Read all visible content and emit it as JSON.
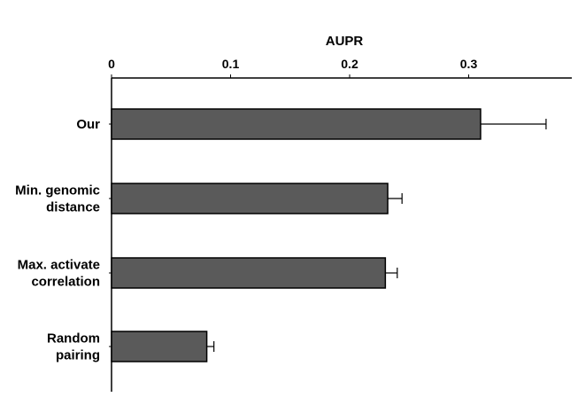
{
  "chart_data": {
    "type": "bar",
    "orientation": "horizontal",
    "title": "",
    "xlabel": "AUPR",
    "ylabel": "",
    "xlim": [
      0,
      0.38
    ],
    "x_ticks": [
      "0",
      "0.1",
      "0.2",
      "0.3"
    ],
    "x_tick_values": [
      0,
      0.1,
      0.2,
      0.3
    ],
    "x_axis_position": "top",
    "grid": false,
    "legend": "none",
    "categories": [
      [
        "Our"
      ],
      [
        "Min. genomic",
        "distance"
      ],
      [
        "Max. activate",
        "correlation"
      ],
      [
        "Random",
        "pairing"
      ]
    ],
    "values": [
      0.31,
      0.232,
      0.23,
      0.08
    ],
    "errors": [
      0.055,
      0.012,
      0.01,
      0.006
    ],
    "colors": {
      "bar": "#5a5a5a",
      "bar_edge": "#000000",
      "axis": "#000000"
    }
  }
}
